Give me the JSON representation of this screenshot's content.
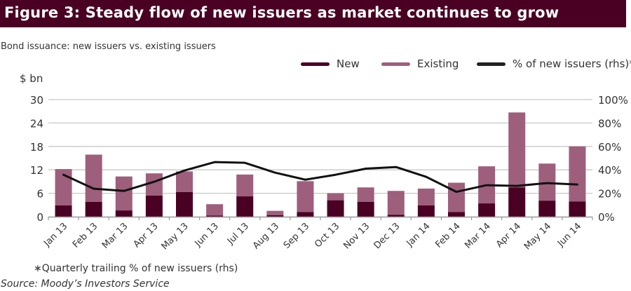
{
  "header": {
    "title": "Figure 3: Steady flow of new issuers as market continues to grow"
  },
  "subtitle": "Bond issuance: new issuers vs. existing issuers",
  "footnote": "∗Quarterly trailing % of new issuers (rhs)",
  "source": "Source: Moody’s Investors Service",
  "colors": {
    "header": "#4a0022",
    "new": "#4a0022",
    "existing": "#9e5f7c",
    "line": "#111111",
    "grid": "#c8c8c8",
    "axis": "#999999"
  },
  "legend": [
    {
      "label": "New",
      "color": "#4a0022"
    },
    {
      "label": "Existing",
      "color": "#9e5f7c"
    },
    {
      "label": "% of new issuers (rhs)*",
      "color": "#222222"
    }
  ],
  "chart_data": {
    "type": "bar",
    "stacked": true,
    "title": "Bond issuance: new issuers vs. existing issuers",
    "xlabel": "",
    "ylabel": "$ bn",
    "ylim": [
      0,
      30
    ],
    "yticks": [
      "0",
      "6",
      "12",
      "18",
      "24",
      "30"
    ],
    "y2lim": [
      0,
      100
    ],
    "y2ticks": [
      "0%",
      "20%",
      "40%",
      "60%",
      "80%",
      "100%"
    ],
    "grid": true,
    "legend_position": "top-right",
    "categories": [
      "Jan 13",
      "Feb 13",
      "Mar 13",
      "Apr 13",
      "May 13",
      "Jun 13",
      "Jul 13",
      "Aug 13",
      "Sep 13",
      "Oct 13",
      "Nov 13",
      "Dec 13",
      "Jan 14",
      "Feb 14",
      "Mar 14",
      "Apr 14",
      "May 14",
      "Jun 14"
    ],
    "series": [
      {
        "name": "New",
        "type": "bar",
        "axis": "left",
        "values": [
          2.9,
          3.8,
          1.6,
          5.4,
          6.3,
          0.3,
          5.2,
          0.4,
          1.2,
          4.2,
          3.8,
          0.5,
          2.9,
          1.2,
          3.4,
          7.5,
          4.1,
          3.9
        ]
      },
      {
        "name": "Existing",
        "type": "bar",
        "axis": "left",
        "values": [
          9.3,
          12.1,
          8.7,
          5.7,
          5.3,
          2.9,
          5.6,
          1.1,
          7.9,
          1.8,
          3.7,
          6.1,
          4.3,
          7.5,
          9.5,
          19.2,
          9.5,
          14.1
        ]
      },
      {
        "name": "% of new issuers (rhs)*",
        "type": "line",
        "axis": "right",
        "values": [
          35.8,
          23.9,
          22.0,
          29.8,
          39.4,
          46.6,
          46.0,
          37.6,
          31.6,
          35.8,
          41.0,
          42.4,
          34.0,
          21.2,
          26.9,
          26.3,
          28.7,
          27.5
        ]
      }
    ]
  }
}
